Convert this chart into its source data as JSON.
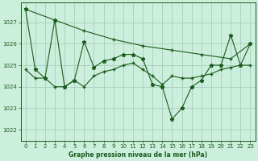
{
  "title": "Graphe pression niveau de la mer (hPa)",
  "background_color": "#cceedd",
  "grid_color": "#aaccbb",
  "line_color": "#1a5c1a",
  "xlim": [
    -0.5,
    23.5
  ],
  "ylim": [
    1021.5,
    1027.9
  ],
  "xticks": [
    0,
    1,
    2,
    3,
    4,
    5,
    6,
    7,
    8,
    9,
    10,
    11,
    12,
    13,
    14,
    15,
    16,
    17,
    18,
    19,
    20,
    21,
    22,
    23
  ],
  "yticks": [
    1022,
    1023,
    1024,
    1025,
    1026,
    1027
  ],
  "line1_x": [
    0,
    1,
    2,
    3,
    4,
    5,
    6,
    7,
    8,
    9,
    10,
    11,
    12,
    13,
    14,
    15,
    16,
    17,
    18,
    19,
    20,
    21,
    22,
    23
  ],
  "line1_y": [
    1027.6,
    1024.8,
    1024.4,
    1027.1,
    1024.0,
    1024.3,
    1026.1,
    1024.9,
    1025.2,
    1025.3,
    1025.5,
    1025.5,
    1025.3,
    1024.1,
    1024.0,
    1022.5,
    1023.0,
    1024.0,
    1024.3,
    1025.0,
    1025.0,
    1026.4,
    1025.0,
    1026.0
  ],
  "line2_x": [
    0,
    1,
    2,
    3,
    4,
    5,
    6,
    7,
    8,
    9,
    10,
    11,
    12,
    13,
    14,
    15,
    16,
    17,
    18,
    19,
    20,
    21,
    22,
    23
  ],
  "line2_y": [
    1024.8,
    1024.4,
    1024.4,
    1024.0,
    1024.0,
    1024.3,
    1024.0,
    1024.5,
    1024.7,
    1024.8,
    1025.0,
    1025.1,
    1024.8,
    1024.5,
    1024.1,
    1024.5,
    1024.4,
    1024.4,
    1024.5,
    1024.6,
    1024.8,
    1024.9,
    1025.0,
    1025.0
  ],
  "line3_x": [
    0,
    3,
    6,
    9,
    12,
    15,
    18,
    21,
    23
  ],
  "line3_y": [
    1027.6,
    1027.1,
    1026.6,
    1026.2,
    1025.9,
    1025.7,
    1025.5,
    1025.3,
    1026.0
  ]
}
